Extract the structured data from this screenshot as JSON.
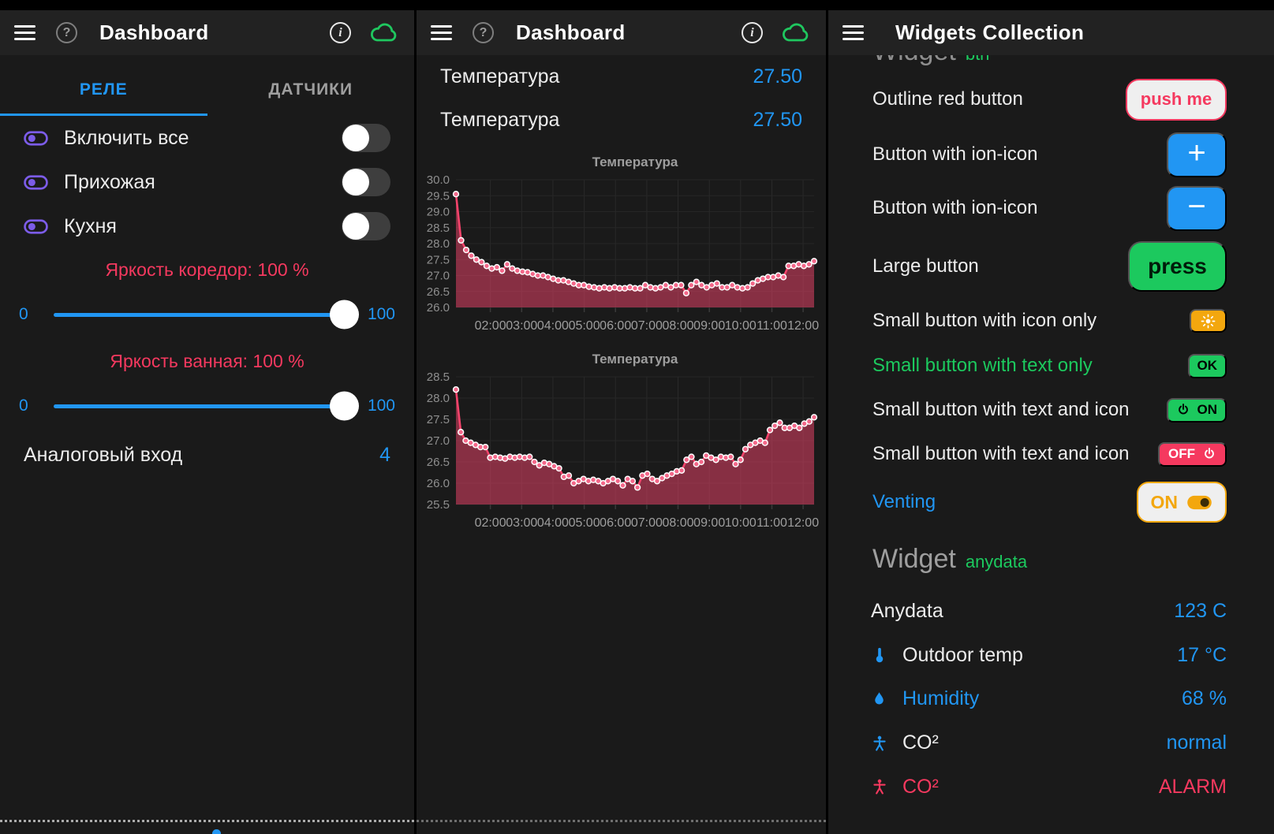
{
  "colors": {
    "blue": "#2196F3",
    "red": "#F5395F",
    "green": "#1CC95E",
    "orange": "#F3A70E",
    "purple": "#7C5CE8",
    "chart_line": "#F4436B"
  },
  "left_panel": {
    "title": "Dashboard",
    "tabs": [
      {
        "label": "РЕЛЕ",
        "active": true
      },
      {
        "label": "ДАТЧИКИ",
        "active": false
      }
    ],
    "switches": [
      {
        "label": "Включить все",
        "state": "off"
      },
      {
        "label": "Прихожая",
        "state": "off"
      },
      {
        "label": "Кухня",
        "state": "off"
      }
    ],
    "sliders": [
      {
        "label": "Яркость коредор: 100 %",
        "min": "0",
        "max": "100",
        "value": 100
      },
      {
        "label": "Яркость ванная: 100 %",
        "min": "0",
        "max": "100",
        "value": 100
      }
    ],
    "analog_row": {
      "label": "Аналоговый вход",
      "value": "4"
    }
  },
  "middle_panel": {
    "title": "Dashboard",
    "value_rows": [
      {
        "label": "Температура",
        "value": "27.50"
      },
      {
        "label": "Температура",
        "value": "27.50"
      }
    ]
  },
  "right_panel": {
    "title": "Widgets Collection",
    "clipped_heading": {
      "title": "Widget",
      "subtitle": "btn"
    },
    "button_rows": [
      {
        "label": "Outline red button",
        "label_color": "white",
        "control": {
          "style": "outline-red",
          "text": "push me"
        }
      },
      {
        "label": "Button with ion-icon",
        "label_color": "white",
        "control": {
          "style": "blue-solid",
          "text": "+"
        }
      },
      {
        "label": "Button with ion-icon",
        "label_color": "white",
        "control": {
          "style": "blue-solid",
          "text": "−"
        }
      },
      {
        "label": "Large button",
        "label_color": "white",
        "control": {
          "style": "green-large",
          "text": "press"
        }
      },
      {
        "label": "Small button with icon only",
        "label_color": "white",
        "control": {
          "style": "orange-small",
          "icon": "sun"
        }
      },
      {
        "label": "Small button with text only",
        "label_color": "green",
        "control": {
          "style": "green-small",
          "text": "OK"
        }
      },
      {
        "label": "Small button with text and icon",
        "label_color": "white",
        "control": {
          "style": "green-small",
          "icon": "power",
          "icon_pos": "left",
          "text": "ON"
        }
      },
      {
        "label": "Small button with text and icon",
        "label_color": "white",
        "control": {
          "style": "red-small",
          "icon": "power",
          "icon_pos": "right",
          "text": "OFF"
        }
      },
      {
        "label": "Venting",
        "label_color": "blue",
        "control": {
          "style": "orange-outline",
          "icon": "toggle-on",
          "icon_pos": "right",
          "text": "ON"
        }
      }
    ],
    "section_heading": {
      "title": "Widget",
      "subtitle": "anydata"
    },
    "data_rows": [
      {
        "icon": null,
        "icon_color": null,
        "label": "Anydata",
        "label_color": "white",
        "value": "123 C",
        "value_color": "blue"
      },
      {
        "icon": "thermometer",
        "icon_color": "blue",
        "label": "Outdoor temp",
        "label_color": "white",
        "value": "17 °C",
        "value_color": "blue"
      },
      {
        "icon": "droplet",
        "icon_color": "blue",
        "label": "Humidity",
        "label_color": "blue",
        "value": "68 %",
        "value_color": "blue"
      },
      {
        "icon": "person",
        "icon_color": "blue",
        "label": "CO²",
        "label_color": "white",
        "value": "normal",
        "value_color": "blue"
      },
      {
        "icon": "person",
        "icon_color": "red",
        "label": "CO²",
        "label_color": "red",
        "value": "ALARM",
        "value_color": "red"
      }
    ]
  },
  "chart_data": [
    {
      "type": "line-area",
      "title": "Температура",
      "ylabel_ticks": [
        30.0,
        29.5,
        29.0,
        28.5,
        28.0,
        27.5,
        27.0,
        26.5,
        26.0
      ],
      "ylim": [
        26.0,
        30.0
      ],
      "x_labels": [
        "02:00",
        "03:00",
        "04:00",
        "05:00",
        "06:00",
        "07:00",
        "08:00",
        "09:00",
        "10:00",
        "11:00",
        "12:00"
      ],
      "x_range_hours": [
        0.9,
        12.35
      ],
      "grid": true,
      "values": [
        29.55,
        28.1,
        27.8,
        27.62,
        27.5,
        27.42,
        27.3,
        27.22,
        27.26,
        27.15,
        27.35,
        27.22,
        27.15,
        27.12,
        27.1,
        27.05,
        27.0,
        27.0,
        26.95,
        26.9,
        26.85,
        26.85,
        26.8,
        26.75,
        26.7,
        26.7,
        26.65,
        26.63,
        26.6,
        26.63,
        26.6,
        26.63,
        26.6,
        26.6,
        26.63,
        26.6,
        26.6,
        26.7,
        26.63,
        26.6,
        26.63,
        26.7,
        26.63,
        26.7,
        26.7,
        26.45,
        26.7,
        26.8,
        26.7,
        26.63,
        26.7,
        26.75,
        26.63,
        26.63,
        26.7,
        26.63,
        26.6,
        26.63,
        26.75,
        26.85,
        26.9,
        26.95,
        26.95,
        27.0,
        26.95,
        27.3,
        27.3,
        27.35,
        27.3,
        27.35,
        27.45
      ]
    },
    {
      "type": "line-area",
      "title": "Температура",
      "ylabel_ticks": [
        28.5,
        28.0,
        27.5,
        27.0,
        26.5,
        26.0,
        25.5
      ],
      "ylim": [
        25.5,
        28.5
      ],
      "x_labels": [
        "02:00",
        "03:00",
        "04:00",
        "05:00",
        "06:00",
        "07:00",
        "08:00",
        "09:00",
        "10:00",
        "11:00",
        "12:00"
      ],
      "x_range_hours": [
        0.9,
        12.35
      ],
      "grid": true,
      "values": [
        28.2,
        27.2,
        27.0,
        26.95,
        26.9,
        26.85,
        26.85,
        26.6,
        26.62,
        26.6,
        26.58,
        26.62,
        26.6,
        26.62,
        26.6,
        26.62,
        26.5,
        26.42,
        26.48,
        26.45,
        26.4,
        26.35,
        26.15,
        26.18,
        26.0,
        26.05,
        26.1,
        26.05,
        26.08,
        26.05,
        26.0,
        26.05,
        26.1,
        26.05,
        25.95,
        26.1,
        26.05,
        25.9,
        26.18,
        26.22,
        26.1,
        26.05,
        26.12,
        26.18,
        26.22,
        26.28,
        26.3,
        26.55,
        26.62,
        26.45,
        26.5,
        26.65,
        26.6,
        26.55,
        26.62,
        26.6,
        26.62,
        26.45,
        26.55,
        26.8,
        26.9,
        26.95,
        27.0,
        26.95,
        27.25,
        27.35,
        27.42,
        27.3,
        27.3,
        27.35,
        27.3,
        27.4,
        27.45,
        27.55
      ]
    }
  ]
}
